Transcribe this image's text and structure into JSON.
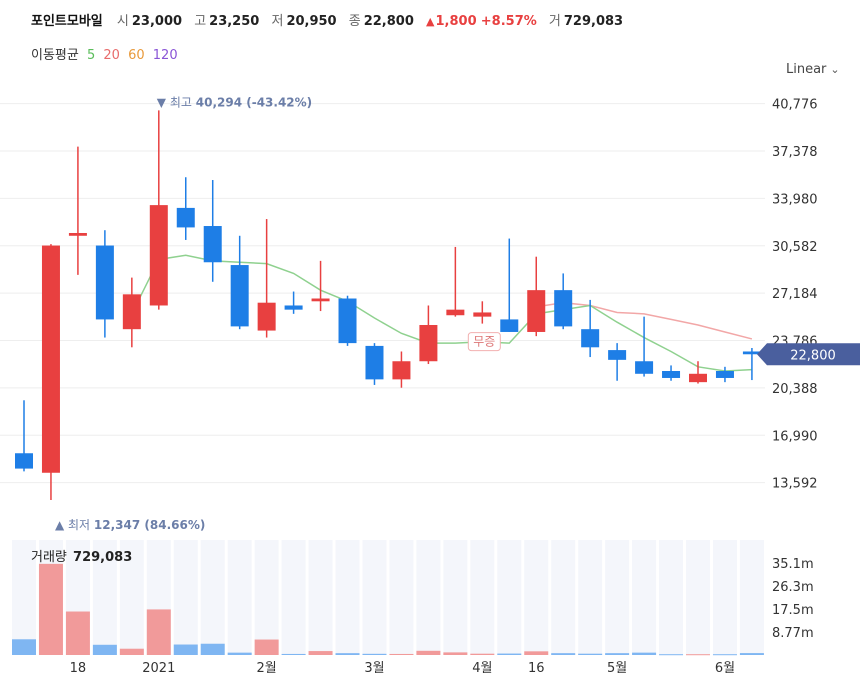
{
  "header": {
    "name": "포인트모바일",
    "open_label": "시",
    "open": "23,000",
    "high_label": "고",
    "high": "23,250",
    "low_label": "저",
    "low": "20,950",
    "close_label": "종",
    "close": "22,800",
    "change_arrow": "▲",
    "change": "1,800",
    "change_pct": "+8.57%",
    "volume_label": "거",
    "volume": "729,083"
  },
  "ma_legend": {
    "title": "이동평균",
    "periods": [
      {
        "label": "5",
        "color": "#5bbd5b"
      },
      {
        "label": "20",
        "color": "#e86c6c"
      },
      {
        "label": "60",
        "color": "#e89a3c"
      },
      {
        "label": "120",
        "color": "#8a55d6"
      }
    ]
  },
  "scale_selector": {
    "label": "Linear",
    "icon": "chevron-down-icon"
  },
  "colors": {
    "up": "#e84040",
    "down": "#1e7ee6",
    "ma5": "#8fd18f",
    "ma20": "#f2a7a7",
    "last_price_tag": "#4a5f9e",
    "annotation": "#6b7ea8"
  },
  "chart_data": {
    "type": "candlestick",
    "interval": "weekly",
    "price_axis": {
      "ylim": [
        10194,
        42475
      ],
      "ticks": [
        40776,
        37378,
        33980,
        30582,
        27184,
        23786,
        20388,
        16990,
        13592
      ],
      "tick_labels": [
        "40,776",
        "37,378",
        "33,980",
        "30,582",
        "27,184",
        "23,786",
        "20,388",
        "16,990",
        "13,592"
      ]
    },
    "x_axis": {
      "labels": [
        {
          "index": 2,
          "text": "18"
        },
        {
          "index": 5,
          "text": "2021"
        },
        {
          "index": 9,
          "text": "2월"
        },
        {
          "index": 13,
          "text": "3월"
        },
        {
          "index": 17,
          "text": "4월"
        },
        {
          "index": 19,
          "text": "16"
        },
        {
          "index": 22,
          "text": "5월"
        },
        {
          "index": 26,
          "text": "6월"
        }
      ]
    },
    "candles": [
      {
        "o": 15700,
        "h": 19500,
        "l": 14400,
        "c": 14600
      },
      {
        "o": 14300,
        "h": 30700,
        "l": 12347,
        "c": 30600
      },
      {
        "o": 31300,
        "h": 37700,
        "l": 28500,
        "c": 31500
      },
      {
        "o": 30600,
        "h": 31700,
        "l": 24000,
        "c": 25300
      },
      {
        "o": 24600,
        "h": 28300,
        "l": 23300,
        "c": 27100
      },
      {
        "o": 26300,
        "h": 40294,
        "l": 26000,
        "c": 33500
      },
      {
        "o": 33300,
        "h": 35500,
        "l": 31000,
        "c": 31900
      },
      {
        "o": 32000,
        "h": 35300,
        "l": 28000,
        "c": 29400
      },
      {
        "o": 29200,
        "h": 31300,
        "l": 24600,
        "c": 24800
      },
      {
        "o": 24500,
        "h": 32500,
        "l": 24000,
        "c": 26500
      },
      {
        "o": 26300,
        "h": 27300,
        "l": 25700,
        "c": 26000
      },
      {
        "o": 26600,
        "h": 29500,
        "l": 25900,
        "c": 26800
      },
      {
        "o": 26800,
        "h": 27000,
        "l": 23400,
        "c": 23600
      },
      {
        "o": 23400,
        "h": 23600,
        "l": 20600,
        "c": 21000
      },
      {
        "o": 21000,
        "h": 23000,
        "l": 20400,
        "c": 22300
      },
      {
        "o": 22300,
        "h": 26300,
        "l": 22100,
        "c": 24900
      },
      {
        "o": 25600,
        "h": 30500,
        "l": 25500,
        "c": 26000
      },
      {
        "o": 25500,
        "h": 26600,
        "l": 25000,
        "c": 25800
      },
      {
        "o": 25300,
        "h": 31100,
        "l": 24400,
        "c": 24400
      },
      {
        "o": 24400,
        "h": 29800,
        "l": 24100,
        "c": 27400
      },
      {
        "o": 27400,
        "h": 28600,
        "l": 24600,
        "c": 24800
      },
      {
        "o": 24600,
        "h": 26700,
        "l": 22600,
        "c": 23300
      },
      {
        "o": 23100,
        "h": 23600,
        "l": 20900,
        "c": 22400
      },
      {
        "o": 22300,
        "h": 25500,
        "l": 21200,
        "c": 21400
      },
      {
        "o": 21600,
        "h": 22000,
        "l": 20900,
        "c": 21100
      },
      {
        "o": 20800,
        "h": 22300,
        "l": 20700,
        "c": 21400
      },
      {
        "o": 21600,
        "h": 21900,
        "l": 20800,
        "c": 21100
      },
      {
        "o": 23000,
        "h": 23250,
        "l": 20950,
        "c": 22800
      }
    ],
    "ma5": [
      null,
      null,
      null,
      null,
      25700,
      29600,
      29900,
      29500,
      29400,
      29300,
      28600,
      27400,
      26600,
      25400,
      24300,
      23600,
      23600,
      23700,
      23600,
      25700,
      26000,
      26300,
      25100,
      24000,
      23000,
      21900,
      21600,
      21700
    ],
    "ma20": [
      null,
      null,
      null,
      null,
      null,
      null,
      null,
      null,
      null,
      null,
      null,
      null,
      null,
      null,
      null,
      null,
      null,
      null,
      null,
      26200,
      26500,
      26300,
      25800,
      25700,
      25300,
      24900,
      24400,
      23900
    ],
    "last_price": "22,800",
    "annotations": [
      {
        "type": "high",
        "index": 5,
        "label": "▼ 최고",
        "value": "40,294 (-43.42%)"
      },
      {
        "type": "low",
        "index": 1,
        "label": "▲ 최저",
        "value": "12,347 (84.66%)"
      },
      {
        "type": "event",
        "index": 17,
        "label": "무증"
      }
    ],
    "volume": {
      "title": "거래량",
      "current": "729,083",
      "ylim": [
        0,
        43900
      ],
      "ticks": [
        35100,
        26300,
        17500,
        8770
      ],
      "tick_labels": [
        "35.1m",
        "26.3m",
        "17.5m",
        "8.77m"
      ],
      "values": [
        6000,
        34800,
        16600,
        3900,
        2400,
        17400,
        4000,
        4300,
        900,
        5900,
        400,
        1500,
        700,
        450,
        400,
        1600,
        1000,
        500,
        550,
        1400,
        700,
        500,
        700,
        900,
        300,
        300,
        300,
        729
      ]
    }
  }
}
